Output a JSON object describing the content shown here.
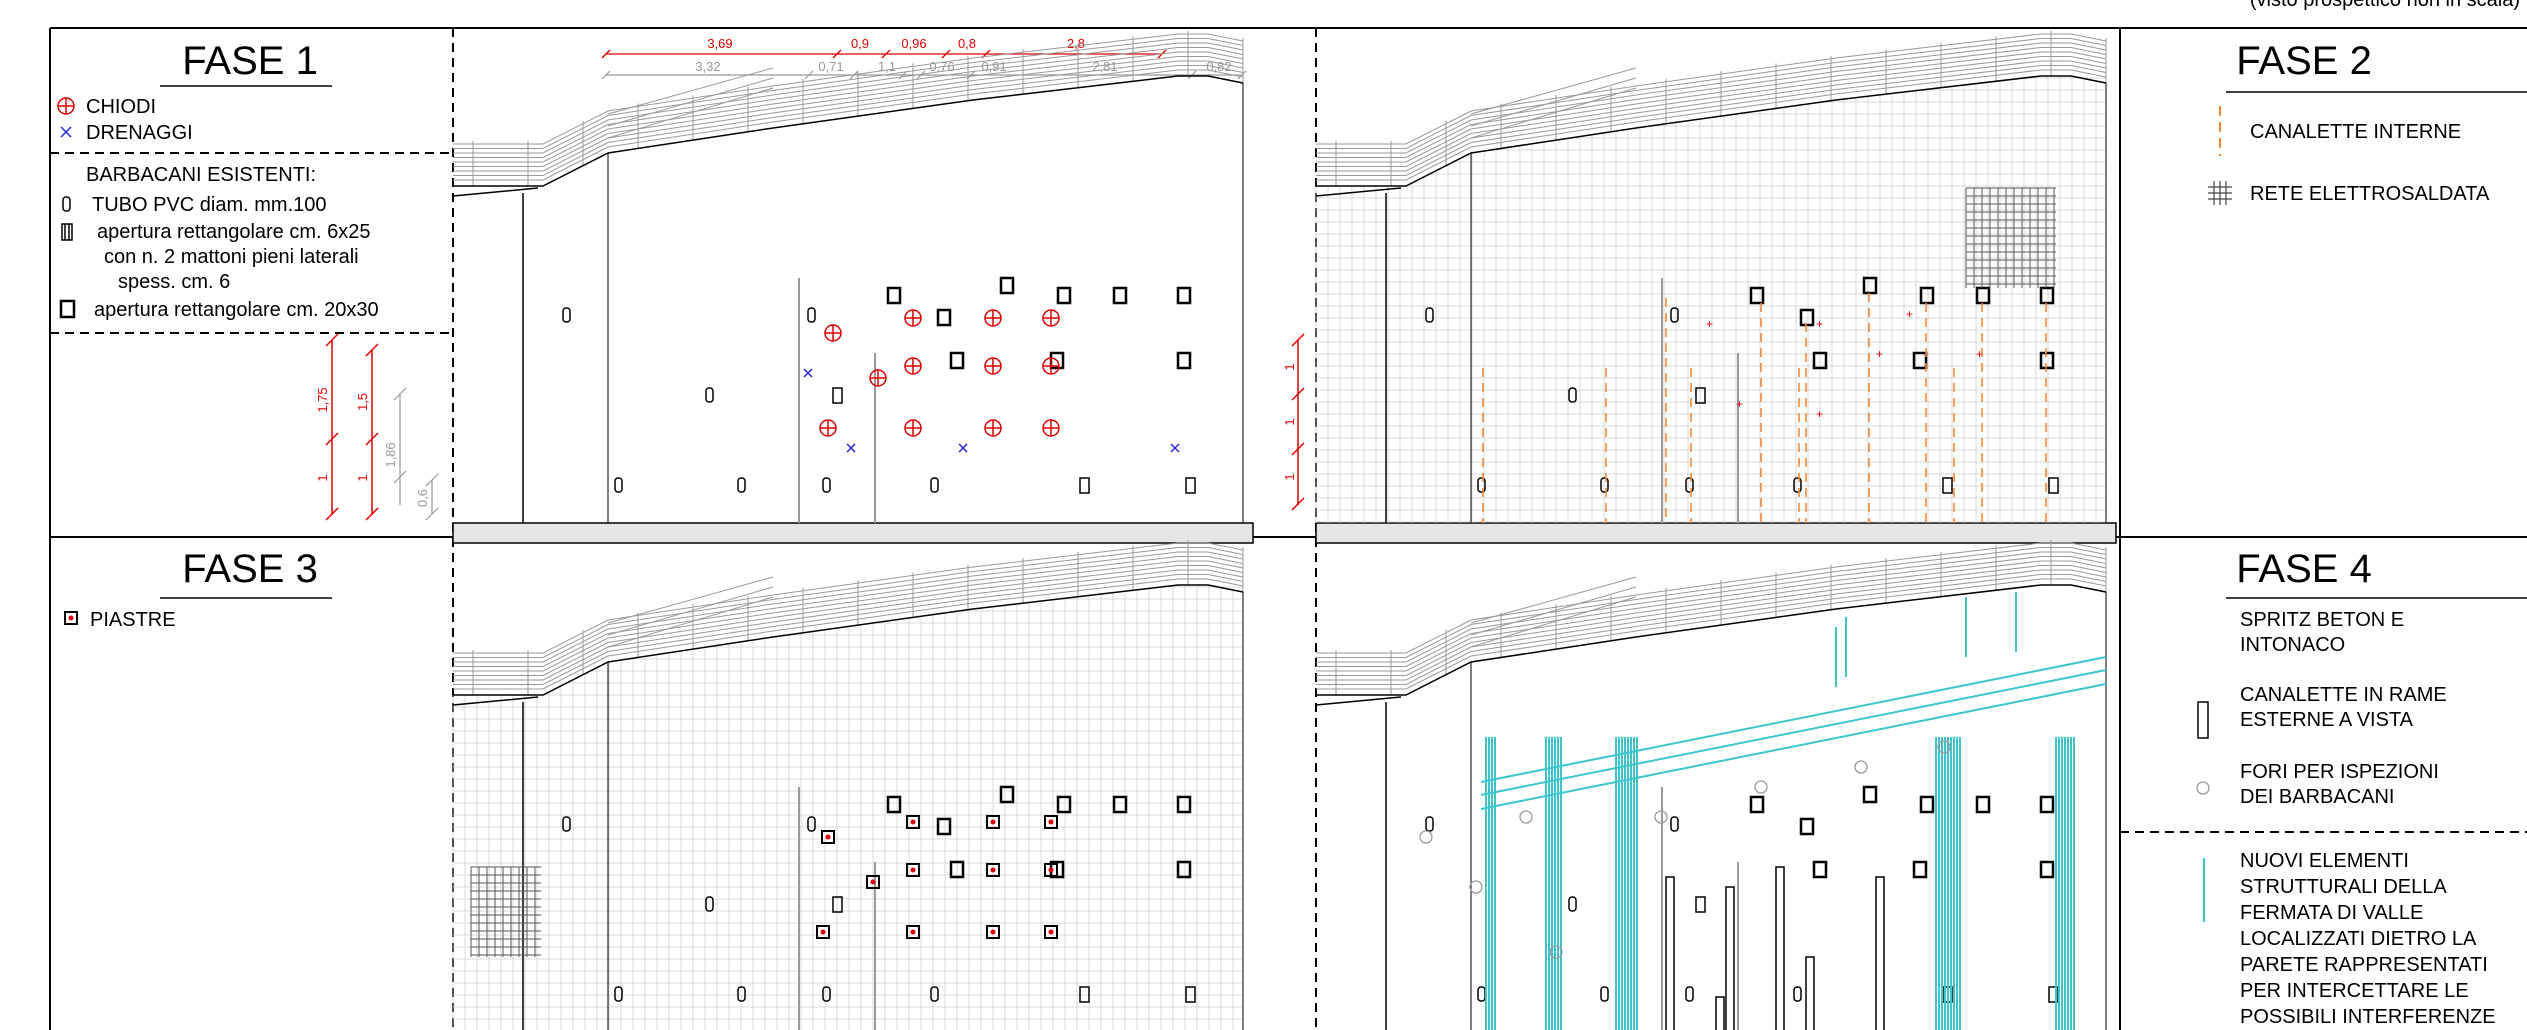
{
  "header_note": "(visto prospettico non in scala)",
  "phases": [
    {
      "title": "FASE 1",
      "legend": [
        {
          "symbol": "chiodo",
          "label": "CHIODI"
        },
        {
          "symbol": "drenaggio",
          "label": "DRENAGGI"
        }
      ],
      "barbacani": {
        "heading": "BARBACANI ESISTENTI:",
        "items": [
          {
            "symbol": "tubo",
            "lines": [
              "TUBO PVC  diam. mm.100"
            ]
          },
          {
            "symbol": "apertura-6x25",
            "lines": [
              "apertura rettangolare cm. 6x25",
              "con n. 2 mattoni pieni laterali",
              "spess. cm. 6"
            ]
          },
          {
            "symbol": "apertura-20x30",
            "lines": [
              "apertura rettangolare cm. 20x30"
            ]
          }
        ]
      }
    },
    {
      "title": "FASE 2",
      "legend": [
        {
          "symbol": "canaletta",
          "label": "CANALETTE INTERNE"
        },
        {
          "symbol": "rete",
          "label": "RETE ELETTROSALDATA"
        }
      ]
    },
    {
      "title": "FASE 3",
      "legend": [
        {
          "symbol": "piastra",
          "label": "PIASTRE"
        }
      ]
    },
    {
      "title": "FASE 4",
      "legend": [
        {
          "symbol": "none",
          "lines": [
            "SPRITZ BETON E",
            "INTONACO"
          ]
        },
        {
          "symbol": "canaletta-rame",
          "lines": [
            "CANALETTE IN RAME",
            "ESTERNE A VISTA"
          ]
        },
        {
          "symbol": "foro",
          "lines": [
            "FORI PER ISPEZIONI",
            "DEI BARBACANI"
          ]
        },
        {
          "symbol": "nuovi-elementi",
          "lines": [
            "NUOVI ELEMENTI",
            "STRUTTURALI DELLA",
            "FERMATA DI VALLE",
            "LOCALIZZATI DIETRO LA",
            "PARETE RAPPRESENTATI",
            "PER INTERCETTARE LE",
            "POSSIBILI INTERFERENZE"
          ]
        }
      ]
    }
  ],
  "dimensions_top_red": [
    "3,69",
    "0,9",
    "0,96",
    "0,8",
    "2,8"
  ],
  "dimensions_top_grey": [
    "3,32",
    "0,71",
    "1,1",
    "0,76",
    "0,91",
    "2,81",
    "0,82"
  ],
  "dimensions_left_red_1": [
    "1,75",
    "1"
  ],
  "dimensions_left_red_2": [
    "1,5",
    "1"
  ],
  "dimensions_left_grey": [
    "1,86",
    "0,6"
  ],
  "dimensions_fase2_red": [
    "1",
    "1",
    "1"
  ],
  "colors": {
    "red": "#e00000",
    "blue": "#2a2ad0",
    "orange": "#f08a3a",
    "cyan": "#3cc6cc",
    "grey": "#9a9a9a",
    "grid": "#cfcfcf",
    "ground": "#e6e6e6"
  }
}
